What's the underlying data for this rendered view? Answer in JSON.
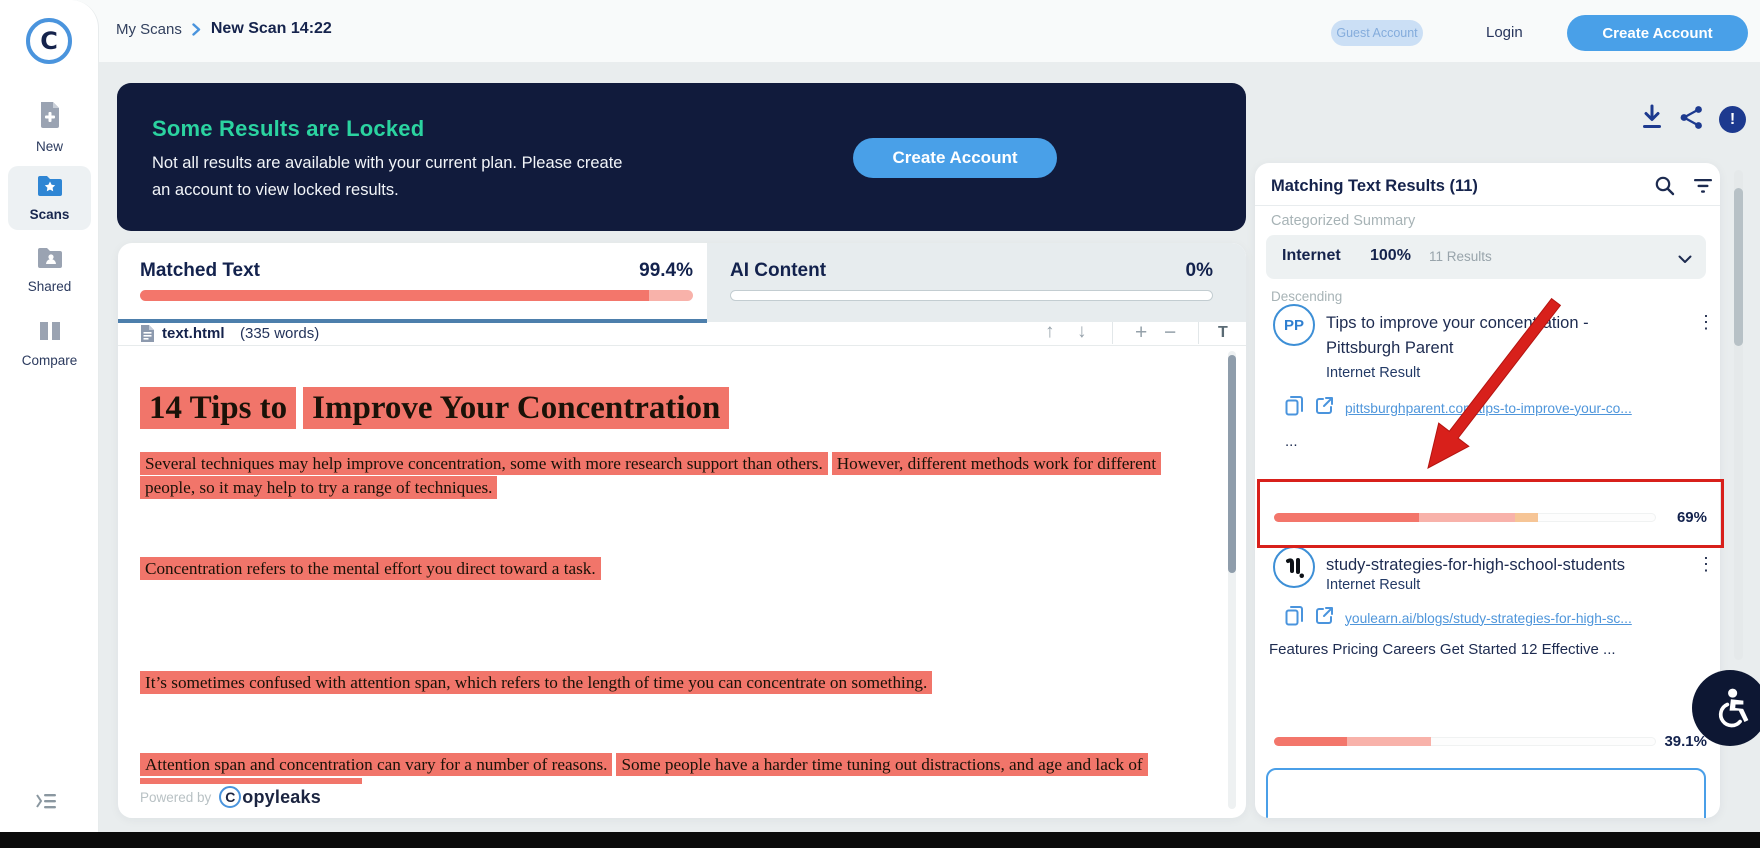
{
  "sidebar": {
    "items": [
      {
        "label": "New"
      },
      {
        "label": "Scans"
      },
      {
        "label": "Shared"
      },
      {
        "label": "Compare"
      }
    ]
  },
  "topbar": {
    "breadcrumb": {
      "parent": "My Scans",
      "current": "New Scan 14:22"
    },
    "guest_badge": "Guest Account",
    "login_label": "Login",
    "create_account_label": "Create Account"
  },
  "banner": {
    "title": "Some Results are Locked",
    "body_line1": "Not all results are available with your current plan. Please create",
    "body_line2": "an account to view locked results.",
    "button_label": "Create Account"
  },
  "tabs": {
    "matched": {
      "label": "Matched Text",
      "value": "99.4%",
      "bar_solid_pct": 92,
      "bar_light_pct": 8
    },
    "ai": {
      "label": "AI Content",
      "value": "0%",
      "bar_fill_pct": 0
    }
  },
  "document": {
    "filename": "text.html",
    "word_count": "(335 words)",
    "title_parts": [
      "14 Tips to",
      "Improve Your Concentration"
    ],
    "paragraphs": [
      {
        "sentences": [
          "Several techniques may help improve concentration, some with more research support than others.",
          "However, different methods work for different people, so it may help to try a range of techniques."
        ]
      },
      {
        "sentences": [
          "Concentration refers to the mental effort you direct toward a task."
        ]
      },
      {
        "sentences": [
          "It’s sometimes confused with attention span, which refers to the length of time you can concentrate on something."
        ]
      },
      {
        "sentences": [
          "Attention span and concentration can vary for a number of reasons.",
          "Some people have a harder time tuning out distractions, and age and lack of"
        ]
      }
    ],
    "footer": {
      "powered_by": "Powered by",
      "brand_first_letter": "C",
      "brand_rest": "opyleaks"
    }
  },
  "results_panel": {
    "title": "Matching Text Results (11)",
    "summary_label": "Categorized Summary",
    "internet_row": {
      "category": "Internet",
      "percent": "100%",
      "count": "11 Results"
    },
    "sort_label": "Descending",
    "results": [
      {
        "avatar_text": "PP",
        "title": "Tips to improve your concentration - Pittsburgh Parent",
        "result_type": "Internet Result",
        "url": "pittsburghparent.com/tips-to-improve-your-co...",
        "snippet": "...",
        "match_percent": "69%",
        "bar": {
          "solid_pct": 38,
          "light_pct": 25,
          "peach_pct": 6
        }
      },
      {
        "avatar_icon": "youlearn-logo",
        "title": "study-strategies-for-high-school-students",
        "result_type": "Internet Result",
        "url": "youlearn.ai/blogs/study-strategies-for-high-sc...",
        "snippet": "Features Pricing Careers Get Started 12 Effective ...",
        "match_percent": "39.1%",
        "bar": {
          "solid_pct": 19,
          "light_pct": 22,
          "peach_pct": 0
        }
      }
    ]
  },
  "icons": {
    "arrow_up": "↑",
    "arrow_down": "↓",
    "zoom_in": "+",
    "zoom_out": "−",
    "text_size": "T",
    "kebab": "⋮",
    "exclamation": "!"
  },
  "colors": {
    "accent_blue": "#49a0e8",
    "brand_navy": "#15234c",
    "banner_bg": "#111b3c",
    "success_green": "#2bd3a0",
    "highlight_salmon": "#f1756a",
    "bar_salmon": "#f3766b",
    "bar_light": "#f8b2aa",
    "bar_peach": "#f6c596",
    "link_blue": "#4f96db",
    "annotation_red": "#d8201b"
  }
}
